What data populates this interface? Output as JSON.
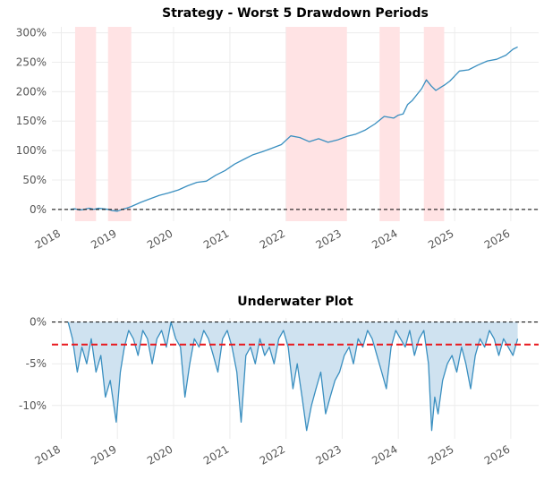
{
  "chart_data": [
    {
      "type": "line",
      "title": "Strategy - Worst 5 Drawdown Periods",
      "xlabel": "",
      "ylabel": "",
      "x_ticks": [
        "2018",
        "2019",
        "2020",
        "2021",
        "2022",
        "2023",
        "2024",
        "2025",
        "2026"
      ],
      "y_ticks": [
        "0%",
        "50%",
        "100%",
        "150%",
        "200%",
        "250%",
        "300%"
      ],
      "xlim": [
        "2017-11-01",
        "2026-07-01"
      ],
      "ylim": [
        -0.2,
        3.1
      ],
      "grid": true,
      "baseline": 0,
      "drawdown_periods": [
        {
          "start": "2018-04-01",
          "end": "2018-08-15"
        },
        {
          "start": "2018-11-01",
          "end": "2019-04-01"
        },
        {
          "start": "2022-01-01",
          "end": "2023-02-01"
        },
        {
          "start": "2023-09-01",
          "end": "2024-01-10"
        },
        {
          "start": "2024-06-15",
          "end": "2024-10-25"
        }
      ],
      "shade_color": "#ffe3e4",
      "line_color": "#3a8fc0",
      "series": [
        {
          "x": [
            "2018-03-01",
            "2018-04-01",
            "2018-05-01",
            "2018-06-01",
            "2018-07-01",
            "2018-08-01",
            "2018-09-01",
            "2018-10-01",
            "2018-11-01",
            "2018-12-01",
            "2019-01-01",
            "2019-02-01",
            "2019-03-01",
            "2019-04-01",
            "2019-06-01",
            "2019-08-01",
            "2019-10-01",
            "2019-12-01",
            "2020-02-01",
            "2020-04-01",
            "2020-06-01",
            "2020-08-01",
            "2020-10-01",
            "2020-12-01",
            "2021-02-01",
            "2021-04-01",
            "2021-06-01",
            "2021-08-01",
            "2021-10-01",
            "2021-12-01",
            "2022-02-01",
            "2022-04-01",
            "2022-06-01",
            "2022-08-01",
            "2022-10-01",
            "2022-12-01",
            "2023-02-01",
            "2023-04-01",
            "2023-06-01",
            "2023-08-01",
            "2023-10-01",
            "2023-12-01",
            "2024-01-01",
            "2024-02-01",
            "2024-03-01",
            "2024-04-01",
            "2024-05-01",
            "2024-06-01",
            "2024-07-01",
            "2024-08-01",
            "2024-09-01",
            "2024-10-01",
            "2024-11-01",
            "2024-12-01",
            "2025-02-01",
            "2025-04-01",
            "2025-06-01",
            "2025-08-01",
            "2025-10-01",
            "2025-12-01",
            "2026-01-15",
            "2026-02-15"
          ],
          "y": [
            0.0,
            0.01,
            -0.01,
            0.0,
            0.02,
            0.0,
            0.02,
            0.01,
            0.0,
            -0.02,
            -0.03,
            0.0,
            0.02,
            0.05,
            0.12,
            0.18,
            0.24,
            0.28,
            0.33,
            0.4,
            0.46,
            0.48,
            0.58,
            0.66,
            0.77,
            0.85,
            0.93,
            0.98,
            1.04,
            1.1,
            1.25,
            1.22,
            1.15,
            1.2,
            1.14,
            1.18,
            1.24,
            1.28,
            1.35,
            1.45,
            1.58,
            1.55,
            1.6,
            1.62,
            1.78,
            1.85,
            1.95,
            2.05,
            2.2,
            2.1,
            2.02,
            2.07,
            2.12,
            2.18,
            2.35,
            2.37,
            2.45,
            2.52,
            2.55,
            2.62,
            2.72,
            2.76
          ]
        }
      ]
    },
    {
      "type": "area",
      "title": "Underwater Plot",
      "xlabel": "",
      "ylabel": "",
      "x_ticks": [
        "2018",
        "2019",
        "2020",
        "2021",
        "2022",
        "2023",
        "2024",
        "2025",
        "2026"
      ],
      "y_ticks": [
        "0%",
        "-5%",
        "-10%"
      ],
      "xlim": [
        "2017-11-01",
        "2026-07-01"
      ],
      "ylim": [
        -0.14,
        0.005
      ],
      "grid": true,
      "mean_line": -0.027,
      "mean_line_color": "#e8181e",
      "fill_color": "#cfe2f0",
      "line_color": "#3a8fc0",
      "series": [
        {
          "x": [
            "2018-02-15",
            "2018-03-15",
            "2018-04-15",
            "2018-05-15",
            "2018-06-15",
            "2018-07-15",
            "2018-08-15",
            "2018-09-15",
            "2018-10-15",
            "2018-11-15",
            "2018-12-24",
            "2019-01-20",
            "2019-02-15",
            "2019-03-15",
            "2019-04-15",
            "2019-05-15",
            "2019-06-15",
            "2019-07-15",
            "2019-08-15",
            "2019-09-15",
            "2019-10-15",
            "2019-11-15",
            "2019-12-15",
            "2020-01-15",
            "2020-02-15",
            "2020-03-15",
            "2020-04-15",
            "2020-05-15",
            "2020-06-15",
            "2020-07-15",
            "2020-08-15",
            "2020-09-15",
            "2020-10-15",
            "2020-11-15",
            "2020-12-15",
            "2021-01-15",
            "2021-02-15",
            "2021-03-15",
            "2021-04-15",
            "2021-05-15",
            "2021-06-15",
            "2021-07-15",
            "2021-08-15",
            "2021-09-15",
            "2021-10-15",
            "2021-11-15",
            "2021-12-15",
            "2022-01-15",
            "2022-02-15",
            "2022-03-15",
            "2022-04-15",
            "2022-05-15",
            "2022-06-15",
            "2022-07-15",
            "2022-08-15",
            "2022-09-15",
            "2022-10-15",
            "2022-11-15",
            "2022-12-15",
            "2023-01-15",
            "2023-02-15",
            "2023-03-15",
            "2023-04-15",
            "2023-05-15",
            "2023-06-15",
            "2023-07-15",
            "2023-08-15",
            "2023-09-15",
            "2023-10-15",
            "2023-11-15",
            "2023-12-15",
            "2024-01-15",
            "2024-02-15",
            "2024-03-15",
            "2024-04-15",
            "2024-05-15",
            "2024-06-15",
            "2024-07-15",
            "2024-08-05",
            "2024-08-25",
            "2024-09-15",
            "2024-10-15",
            "2024-11-15",
            "2024-12-15",
            "2025-01-15",
            "2025-02-15",
            "2025-03-15",
            "2025-04-15",
            "2025-05-15",
            "2025-06-15",
            "2025-07-15",
            "2025-08-15",
            "2025-09-15",
            "2025-10-15",
            "2025-11-15",
            "2025-12-15",
            "2026-01-15",
            "2026-02-15"
          ],
          "y": [
            0.0,
            -0.02,
            -0.06,
            -0.03,
            -0.05,
            -0.02,
            -0.06,
            -0.04,
            -0.09,
            -0.07,
            -0.12,
            -0.06,
            -0.03,
            -0.01,
            -0.02,
            -0.04,
            -0.01,
            -0.02,
            -0.05,
            -0.02,
            -0.01,
            -0.03,
            0.0,
            -0.02,
            -0.03,
            -0.09,
            -0.05,
            -0.02,
            -0.03,
            -0.01,
            -0.02,
            -0.04,
            -0.06,
            -0.02,
            -0.01,
            -0.03,
            -0.06,
            -0.12,
            -0.04,
            -0.03,
            -0.05,
            -0.02,
            -0.04,
            -0.03,
            -0.05,
            -0.02,
            -0.01,
            -0.03,
            -0.08,
            -0.05,
            -0.09,
            -0.13,
            -0.1,
            -0.08,
            -0.06,
            -0.11,
            -0.09,
            -0.07,
            -0.06,
            -0.04,
            -0.03,
            -0.05,
            -0.02,
            -0.03,
            -0.01,
            -0.02,
            -0.04,
            -0.06,
            -0.08,
            -0.03,
            -0.01,
            -0.02,
            -0.03,
            -0.01,
            -0.04,
            -0.02,
            -0.01,
            -0.05,
            -0.13,
            -0.09,
            -0.11,
            -0.07,
            -0.05,
            -0.04,
            -0.06,
            -0.03,
            -0.05,
            -0.08,
            -0.04,
            -0.02,
            -0.03,
            -0.01,
            -0.02,
            -0.04,
            -0.02,
            -0.03,
            -0.04,
            -0.02
          ]
        }
      ]
    }
  ]
}
